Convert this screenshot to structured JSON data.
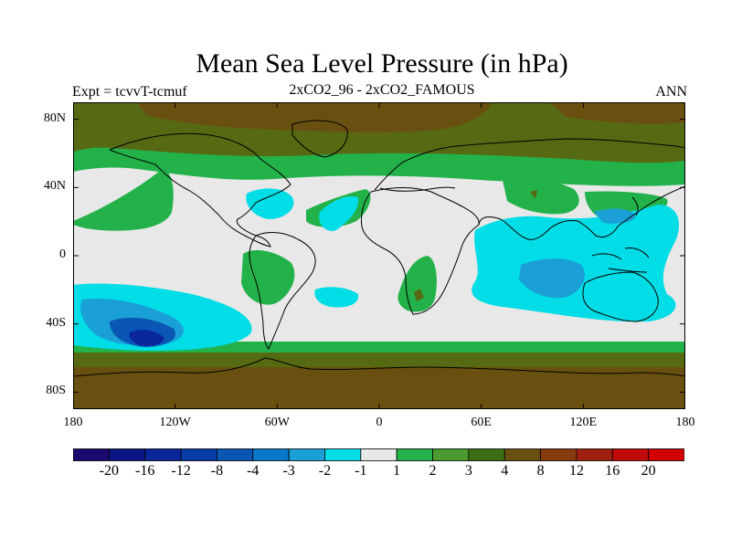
{
  "title": "Mean Sea Level Pressure (in hPa)",
  "subtitle_left": "Expt = tcvvT-tcmuf",
  "subtitle_center": "2xCO2_96 - 2xCO2_FAMOUS",
  "subtitle_right": "ANN",
  "y_ticks": [
    {
      "label": "80N",
      "lat": 80
    },
    {
      "label": "40N",
      "lat": 40
    },
    {
      "label": "0",
      "lat": 0
    },
    {
      "label": "40S",
      "lat": -40
    },
    {
      "label": "80S",
      "lat": -80
    }
  ],
  "x_ticks": [
    {
      "label": "180",
      "lon": -180
    },
    {
      "label": "120W",
      "lon": -120
    },
    {
      "label": "60W",
      "lon": -60
    },
    {
      "label": "0",
      "lon": 0
    },
    {
      "label": "60E",
      "lon": 60
    },
    {
      "label": "120E",
      "lon": 120
    },
    {
      "label": "180",
      "lon": 180
    }
  ],
  "colorbar": {
    "colors": [
      "#1a0a6e",
      "#0d1585",
      "#09279a",
      "#0a3ca8",
      "#0a56b4",
      "#0a78c8",
      "#1a9fd6",
      "#00dde6",
      "#e8e8e8",
      "#23b24a",
      "#4a9a30",
      "#3e6e14",
      "#6a5010",
      "#8a3a10",
      "#a02010",
      "#c00a0a",
      "#d00000"
    ],
    "labels": [
      "-20",
      "-16",
      "-12",
      "-8",
      "-4",
      "-3",
      "-2",
      "-1",
      "1",
      "2",
      "3",
      "4",
      "8",
      "12",
      "16",
      "20"
    ]
  },
  "fill_colors": {
    "background": "#e8e8e8",
    "brown": "#6a5010",
    "olive": "#566a14",
    "green": "#23b24a",
    "cyan": "#00dde6",
    "blue": "#1a9fd6",
    "deep_blue": "#0a56b4",
    "darkest": "#09279a"
  }
}
